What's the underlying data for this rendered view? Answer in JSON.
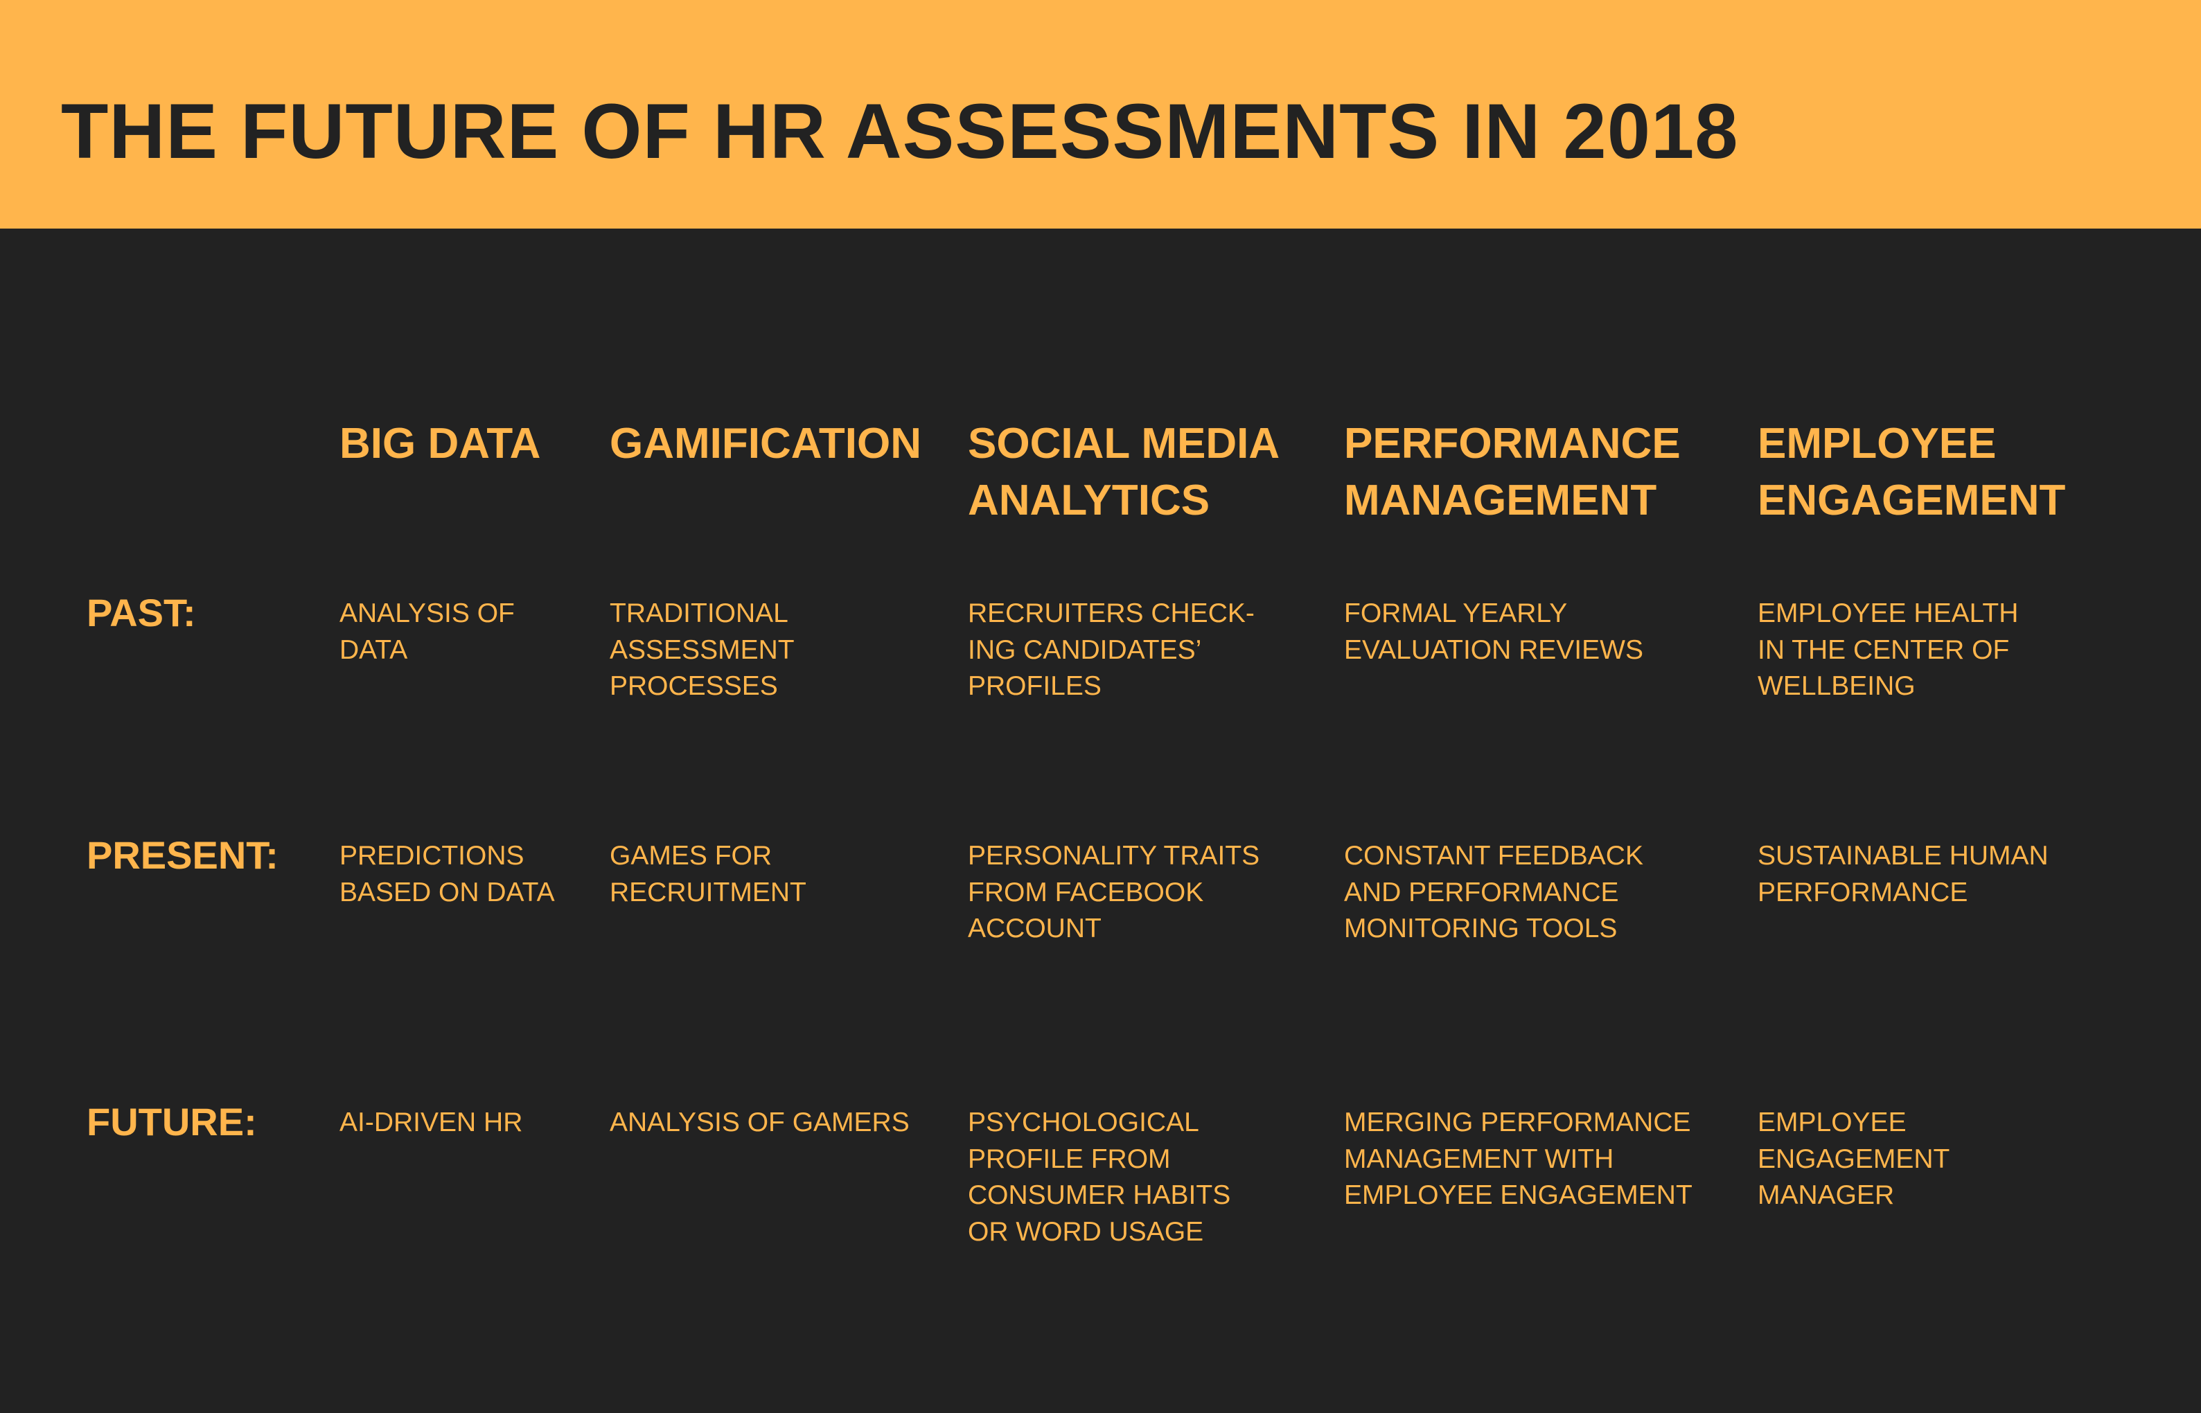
{
  "header": {
    "title": "THE FUTURE OF HR ASSESSMENTS IN 2018"
  },
  "colors": {
    "accent": "#ffb54c",
    "background": "#222222"
  },
  "table": {
    "columns": [
      "BIG DATA",
      "GAMIFICATION",
      "SOCIAL MEDIA\nANALYTICS",
      "PERFORMANCE\nMANAGEMENT",
      "EMPLOYEE\nENGAGEMENT"
    ],
    "rows": [
      {
        "label": "PAST:",
        "cells": [
          " ANALYSIS OF\nDATA",
          "TRADITIONAL\nASSESSMENT\nPROCESSES",
          "RECRUITERS CHECK-\nING CANDIDATES’\nPROFILES",
          "FORMAL YEARLY\nEVALUATION REVIEWS",
          "EMPLOYEE HEALTH\nIN THE CENTER OF\nWELLBEING"
        ]
      },
      {
        "label": "PRESENT:",
        "cells": [
          "PREDICTIONS\nBASED ON DATA",
          "GAMES FOR\nRECRUITMENT",
          "PERSONALITY TRAITS\nFROM FACEBOOK\nACCOUNT",
          "CONSTANT FEEDBACK\nAND PERFORMANCE\nMONITORING TOOLS",
          "SUSTAINABLE HUMAN\nPERFORMANCE"
        ]
      },
      {
        "label": "FUTURE:",
        "cells": [
          "AI-DRIVEN HR",
          "ANALYSIS OF GAMERS",
          "PSYCHOLOGICAL\nPROFILE FROM\nCONSUMER HABITS\nOR WORD USAGE",
          "MERGING PERFORMANCE\nMANAGEMENT WITH\nEMPLOYEE ENGAGEMENT",
          "EMPLOYEE\nENGAGEMENT\nMANAGER"
        ]
      }
    ]
  }
}
